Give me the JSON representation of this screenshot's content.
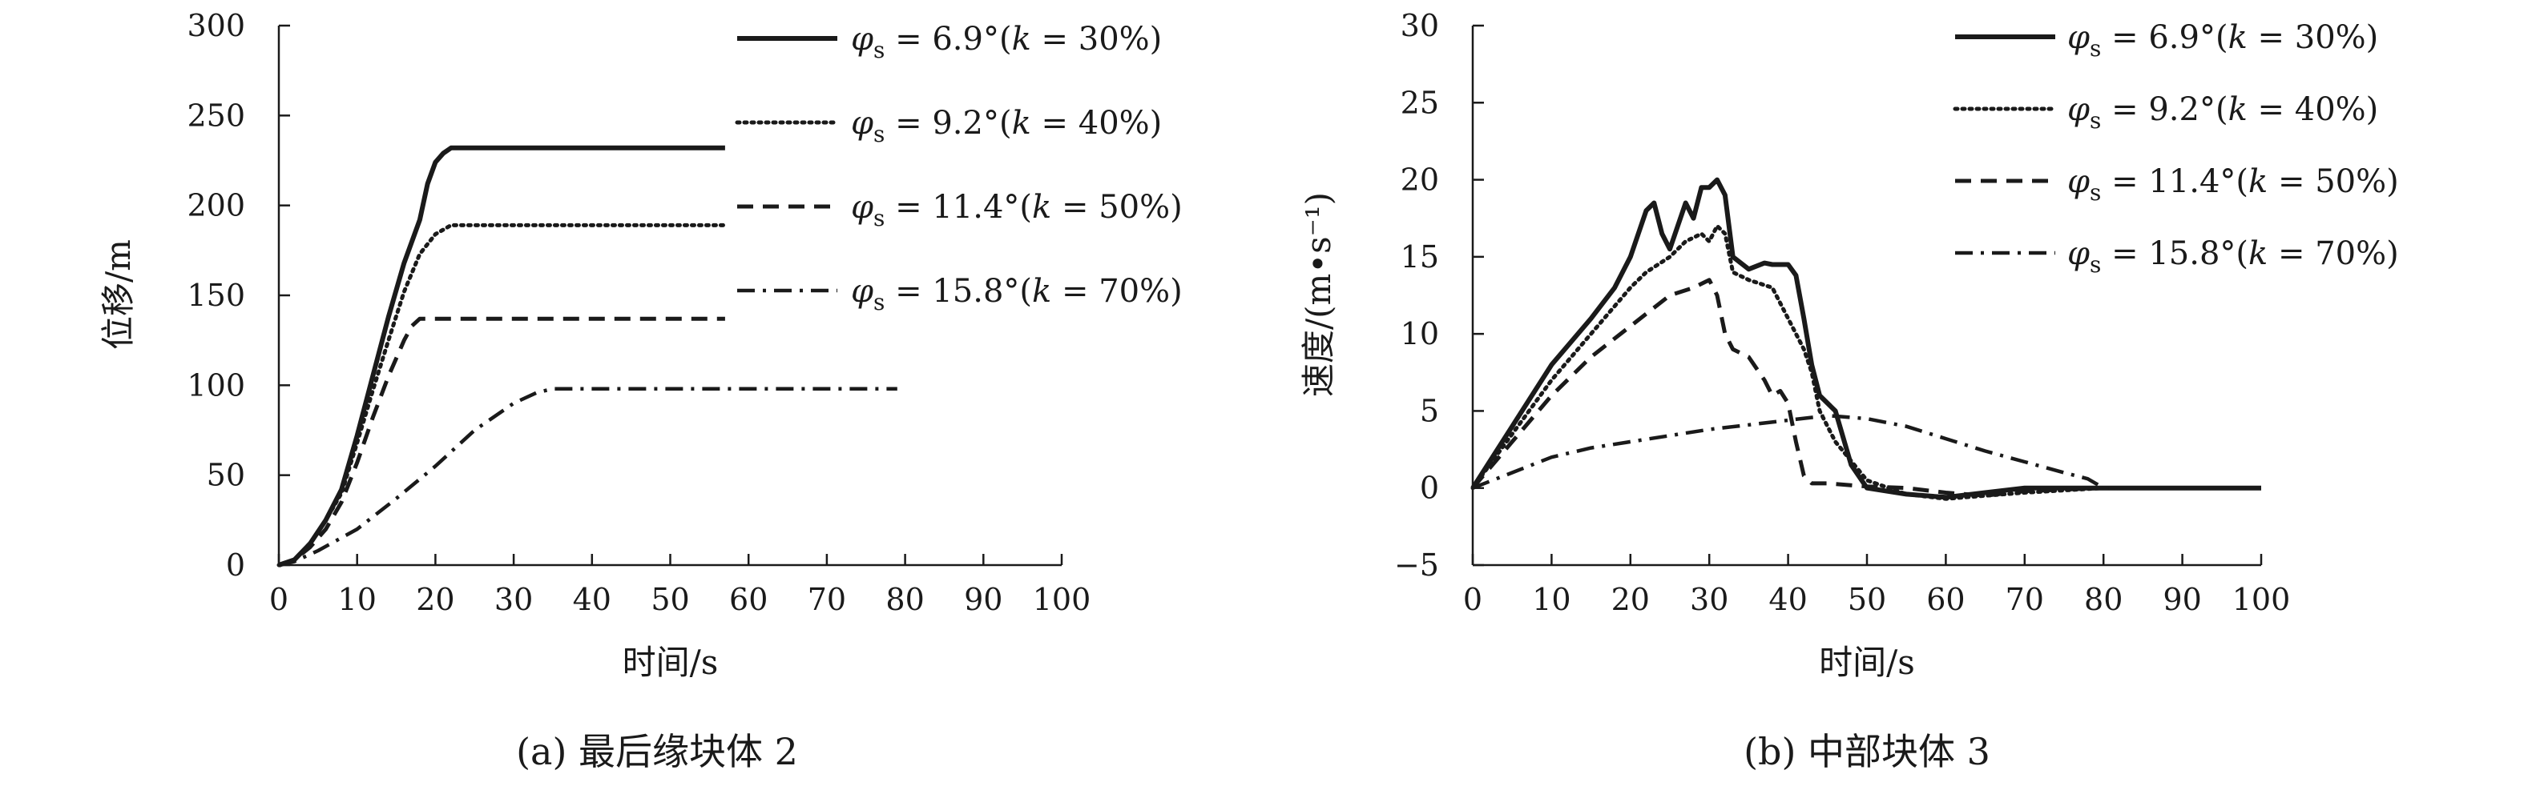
{
  "chart_data": [
    {
      "type": "line",
      "caption": "(a) 最后缘块体 2",
      "xlabel": "时间/s",
      "ylabel": "位移/m",
      "xlim": [
        0,
        100
      ],
      "ylim": [
        0,
        300
      ],
      "xticks": [
        0,
        10,
        20,
        30,
        40,
        50,
        60,
        70,
        80,
        90,
        100
      ],
      "yticks": [
        0,
        50,
        100,
        150,
        200,
        250,
        300
      ],
      "grid": false,
      "legend_position": "top-right",
      "series": [
        {
          "name": "φs = 6.9°(k = 30%)",
          "dash": "solid",
          "x": [
            0,
            2,
            4,
            6,
            8,
            10,
            12,
            14,
            16,
            18,
            19,
            20,
            21,
            22,
            25,
            30,
            40,
            57
          ],
          "y": [
            0,
            3,
            12,
            25,
            42,
            72,
            105,
            138,
            168,
            192,
            212,
            224,
            229,
            232,
            232,
            232,
            232,
            232
          ]
        },
        {
          "name": "φs = 9.2°(k = 40%)",
          "dash": "dot",
          "x": [
            0,
            2,
            4,
            6,
            8,
            10,
            12,
            14,
            16,
            18,
            20,
            22,
            25,
            30,
            40,
            57
          ],
          "y": [
            0,
            3,
            12,
            25,
            40,
            68,
            97,
            125,
            152,
            173,
            184,
            189,
            189,
            189,
            189,
            189
          ]
        },
        {
          "name": "φs = 11.4°(k = 50%)",
          "dash": "dash",
          "x": [
            0,
            2,
            4,
            6,
            8,
            10,
            12,
            14,
            16,
            17,
            18,
            20,
            30,
            40,
            57
          ],
          "y": [
            0,
            3,
            10,
            20,
            35,
            57,
            82,
            105,
            125,
            133,
            137,
            137,
            137,
            137,
            137
          ]
        },
        {
          "name": "φs = 15.8°(k = 70%)",
          "dash": "dashdot",
          "x": [
            0,
            2,
            5,
            10,
            15,
            20,
            25,
            30,
            33,
            35,
            40,
            50,
            60,
            79
          ],
          "y": [
            0,
            2,
            8,
            20,
            37,
            55,
            75,
            90,
            96,
            98,
            98,
            98,
            98,
            98
          ]
        }
      ]
    },
    {
      "type": "line",
      "caption": "(b) 中部块体 3",
      "xlabel": "时间/s",
      "ylabel": "速度/(m•s⁻¹)",
      "xlim": [
        0,
        100
      ],
      "ylim": [
        -5,
        30
      ],
      "xticks": [
        0,
        10,
        20,
        30,
        40,
        50,
        60,
        70,
        80,
        90,
        100
      ],
      "yticks": [
        -5,
        0,
        5,
        10,
        15,
        20,
        25,
        30
      ],
      "grid": false,
      "legend_position": "top-right",
      "series": [
        {
          "name": "φs = 6.9°(k = 30%)",
          "dash": "solid",
          "x": [
            0,
            5,
            10,
            15,
            18,
            20,
            22,
            23,
            24,
            25,
            27,
            28,
            29,
            30,
            31,
            32,
            33,
            35,
            37,
            38,
            40,
            41,
            42,
            43,
            44,
            46,
            48,
            50,
            55,
            60,
            65,
            70,
            80,
            90,
            100
          ],
          "y": [
            0,
            4,
            8,
            11,
            13,
            15,
            18,
            18.5,
            16.5,
            15.5,
            18.5,
            17.5,
            19.5,
            19.5,
            20,
            19,
            15,
            14.2,
            14.6,
            14.5,
            14.5,
            13.8,
            11,
            8,
            6,
            5,
            1.5,
            0,
            -0.4,
            -0.6,
            -0.3,
            0,
            0,
            0,
            0
          ]
        },
        {
          "name": "φs = 9.2°(k = 40%)",
          "dash": "dot",
          "x": [
            0,
            5,
            10,
            15,
            20,
            22,
            25,
            27,
            29,
            30,
            31,
            32,
            33,
            35,
            38,
            40,
            42,
            43,
            44,
            46,
            50,
            55,
            60,
            65,
            70,
            80,
            90,
            100
          ],
          "y": [
            0,
            3.5,
            7,
            10,
            13,
            14,
            15,
            16,
            16.5,
            16,
            17,
            16.5,
            14,
            13.5,
            13,
            11,
            9,
            7.5,
            5,
            3,
            0.5,
            -0.4,
            -0.7,
            -0.5,
            -0.3,
            0,
            0,
            0
          ]
        },
        {
          "name": "φs = 11.4°(k = 50%)",
          "dash": "dash",
          "x": [
            0,
            5,
            10,
            15,
            20,
            25,
            28,
            30,
            31,
            32,
            33,
            35,
            37,
            38,
            39,
            40,
            41,
            42,
            43,
            45,
            50,
            55,
            60,
            65,
            70,
            80,
            90,
            100
          ],
          "y": [
            0,
            3,
            6,
            8.5,
            10.5,
            12.5,
            13,
            13.5,
            12.5,
            10,
            9,
            8.5,
            7,
            6,
            6.3,
            5.5,
            3,
            0.8,
            0.3,
            0.3,
            0.1,
            0,
            -0.3,
            -0.5,
            -0.2,
            0,
            0,
            0
          ]
        },
        {
          "name": "φs = 15.8°(k = 70%)",
          "dash": "dashdot",
          "x": [
            0,
            5,
            10,
            15,
            20,
            25,
            30,
            35,
            40,
            45,
            50,
            55,
            60,
            65,
            70,
            75,
            78,
            80,
            90,
            100
          ],
          "y": [
            0,
            1,
            2,
            2.6,
            3,
            3.4,
            3.8,
            4.1,
            4.4,
            4.7,
            4.5,
            4,
            3.2,
            2.4,
            1.7,
            1,
            0.6,
            0,
            0,
            0
          ]
        }
      ]
    }
  ]
}
